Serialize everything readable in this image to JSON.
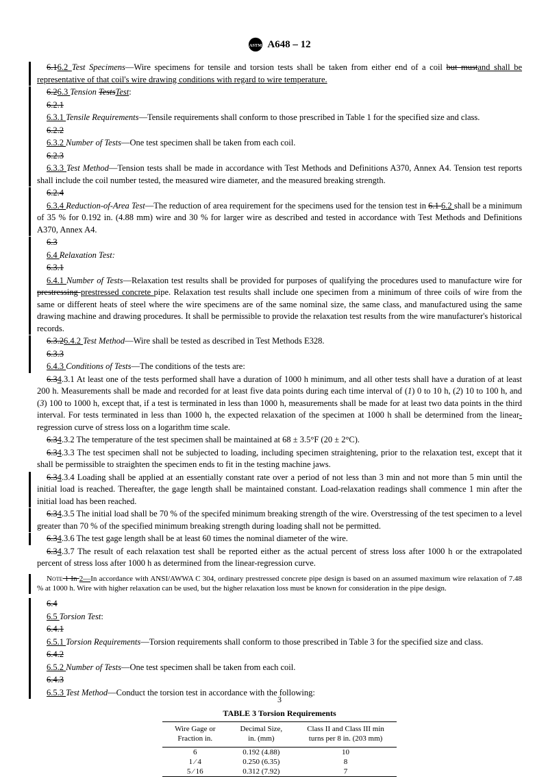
{
  "header": {
    "title": "A648 – 12"
  },
  "paras": {
    "p1a": "6.1",
    "p1b": "6.2   ",
    "p1heading": "Test Specimens",
    "p1c": "—Wire specimens for tensile and torsion tests shall be taken from either end of a coil ",
    "p1strike": "but must",
    "p1d": "and shall be representative of that coil's wire drawing conditions with regard to wire temperature.",
    "p2a": "6.2",
    "p2b": "6.3  ",
    "p2c": "Tension ",
    "p2d": "Tests",
    "p2e": "Test",
    "p2f": ":",
    "p3": "6.2.1",
    "p4a": "6.3.1  ",
    "p4h": "Tensile Requirements",
    "p4b": "—Tensile requirements shall conform to those prescribed in Table 1 for the specified size and class.",
    "p5": "6.2.2",
    "p6a": "6.3.2  ",
    "p6h": "Number of Tests",
    "p6b": "—One test specimen shall be taken from each coil.",
    "p7": "6.2.3",
    "p8a": "6.3.3  ",
    "p8h": "Test Method",
    "p8b": "—Tension tests shall be made in accordance with Test Methods and Definitions A370, Annex A4. Tension test reports shall include the coil number tested, the measured wire diameter, and the measured breaking strength.",
    "p9": "6.2.4",
    "p10a": "6.3.4  ",
    "p10h": "Reduction-of-Area Test",
    "p10b": "—The reduction of area requirement for the specimens used for the tension test in ",
    "p10c": "6.1 ",
    "p10d": "6.2 ",
    "p10e": "shall be a minimum of 35 % for 0.192 in. (4.88 mm) wire and 30 % for larger wire as described and tested in accordance with Test Methods and Definitions A370, Annex A4.",
    "p11": "6.3",
    "p12a": "6.4  ",
    "p12b": "Relaxation Test:",
    "p13": "6.3.1",
    "p14a": "6.4.1  ",
    "p14h": "Number of Tests",
    "p14b": "—Relaxation test results shall be provided for purposes of qualifying the procedures used to manufacture wire for ",
    "p14c": "prestressing ",
    "p14d": "prestressed concrete ",
    "p14e": "pipe. Relaxation test results shall include one specimen from a minimum of three coils of wire from the same or different heats of steel where the wire specimens are of the same nominal size, the same class, and manufactured using the same drawing machine and drawing procedures. It shall be permissible to provide the relaxation test results from the wire manufacturer's historical records.",
    "p15a": "6.3.2",
    "p15b": "6.4.2  ",
    "p15h": "Test Method",
    "p15c": "—Wire shall be tested as described in Test Methods E328.",
    "p16": "6.3.3",
    "p17a": "6.4.3  ",
    "p17h": "Conditions of Tests",
    "p17b": "—The conditions of the tests are:",
    "p18a": "6.3",
    "p18b": "4",
    "p18c": ".3.1  At least one of the tests performed shall have a duration of 1000 h minimum, and all other tests shall have a duration of at least 200 h. Measurements shall be made and recorded for at least five data points during each time interval of (",
    "p18d": "1",
    "p18e": ") 0 to 10 h, (",
    "p18f": "2",
    "p18g": ") 10 to 100 h, and (",
    "p18h": "3",
    "p18i": ") 100 to 1000 h, except that, if a test is terminated in less than 1000 h, measurements shall be made for at least two data points in the third interval. For tests terminated in less than 1000 h, the expected relaxation of the specimen at 1000 h shall be determined from the linear",
    "p18j": "-",
    "p18k": "regression curve of stress loss on a logarithm time scale.",
    "p19a": "6.3",
    "p19b": "4",
    "p19c": ".3.2  The temperature of the test specimen shall be maintained at 68 ± 3.5°F (20 ± 2°C).",
    "p20a": "6.3",
    "p20b": "4",
    "p20c": ".3.3  The test specimen shall not be subjected to loading, including specimen straightening, prior to the relaxation test, except that it shall be permissible to straighten the specimen ends to fit in the testing machine jaws.",
    "p21a": "6.3",
    "p21b": "4",
    "p21c": ".3.4  Loading shall be applied at an essentially constant rate over a period of not less than 3 min and not more than 5 min until the initial load is reached. Thereafter, the gage length shall be maintained constant. Load-relaxation readings shall commence 1 min after the initial load has been reached.",
    "p22a": "6.3",
    "p22b": "4",
    "p22c": ".3.5  The initial load shall be 70 % of the specifed minimum breaking strength of the wire. Overstressing of the test specimen to a level greater than 70 % of the specified minimum breaking strength during loading shall not be permitted.",
    "p23a": "6.3",
    "p23b": "4",
    "p23c": ".3.6  The test gage length shall be at least 60 times the nominal diameter of the wire.",
    "p24a": "6.3",
    "p24b": "4",
    "p24c": ".3.7  The result of each relaxation test shall be reported either as the actual percent of stress loss after 1000 h or the extrapolated percent of stress loss after 1000 h as determined from the linear-regression curve.",
    "note_a": "Note",
    "note_b": " 1   In ",
    "note_c": " 2—",
    "note_d": "In accordance with ANSI/AWWA C 304, ordinary prestressed concrete pipe design is based on an assumed maximum wire relaxation of 7.48 % at 1000 h. Wire with higher relaxation can be used, but the higher relaxation loss must be known for consideration in the pipe design.",
    "p25": "6.4",
    "p26a": "6.5  ",
    "p26b": "Torsion Test",
    "p26c": ":",
    "p27": "6.4.1",
    "p28a": "6.5.1  ",
    "p28h": "Torsion Requirements",
    "p28b": "—Torsion requirements shall conform to those prescribed in Table 3 for the specified size and class.",
    "p29": "6.4.2",
    "p30a": "6.5.2  ",
    "p30h": "Number of Tests",
    "p30b": "—One test specimen shall be taken from each coil.",
    "p31": "6.4.3",
    "p32a": "6.5.3  ",
    "p32h": "Test Method",
    "p32b": "—Conduct the torsion test in accordance with the following:"
  },
  "table": {
    "title": "TABLE 3  Torsion Requirements",
    "headers": [
      "Wire Gage or\nFraction in.",
      "Decimal Size,\nin. (mm)",
      "Class II and Class III min\nturns per 8 in. (203 mm)"
    ],
    "rows": [
      [
        "6",
        "0.192 (4.88)",
        "10"
      ],
      [
        "1 ⁄ 4",
        "0.250 (6.35)",
        "8"
      ],
      [
        "5 ⁄ 16",
        "0.312 (7.92)",
        "7"
      ]
    ]
  },
  "pagenum": "3"
}
